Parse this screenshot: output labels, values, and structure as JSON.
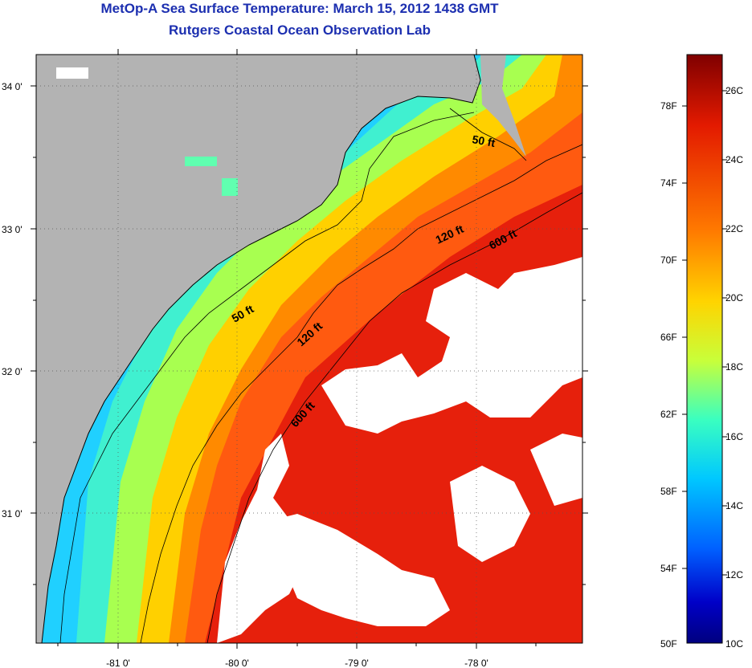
{
  "header": {
    "title": "MetOp-A Sea Surface Temperature:  March 15, 2012 1438 GMT",
    "subtitle": "Rutgers Coastal Ocean Observation Lab"
  },
  "map": {
    "lat_labels": [
      "34 0'",
      "33 0'",
      "32 0'",
      "31 0'"
    ],
    "lon_labels": [
      "-81 0'",
      "-80 0'",
      "-79 0'",
      "-78 0'"
    ],
    "land_color": "#b3b3b3",
    "cloud_color": "#ffffff",
    "contours": [
      {
        "label": "50 ft"
      },
      {
        "label": "120 ft"
      },
      {
        "label": "600 ft"
      }
    ],
    "contour_labels": [
      "50 ft",
      "50 ft",
      "120 ft",
      "120 ft",
      "600 ft",
      "600 ft"
    ]
  },
  "colorbar": {
    "fahrenheit": [
      "78F",
      "74F",
      "70F",
      "66F",
      "62F",
      "58F",
      "54F",
      "50F"
    ],
    "celsius": [
      "26C",
      "24C",
      "22C",
      "20C",
      "18C",
      "16C",
      "14C",
      "12C",
      "10C"
    ],
    "colors": [
      "#7f0000",
      "#e31a00",
      "#ff7a00",
      "#ffd400",
      "#c8ff3a",
      "#3affc0",
      "#00c8ff",
      "#0060ff",
      "#0000c8",
      "#00007f"
    ]
  }
}
